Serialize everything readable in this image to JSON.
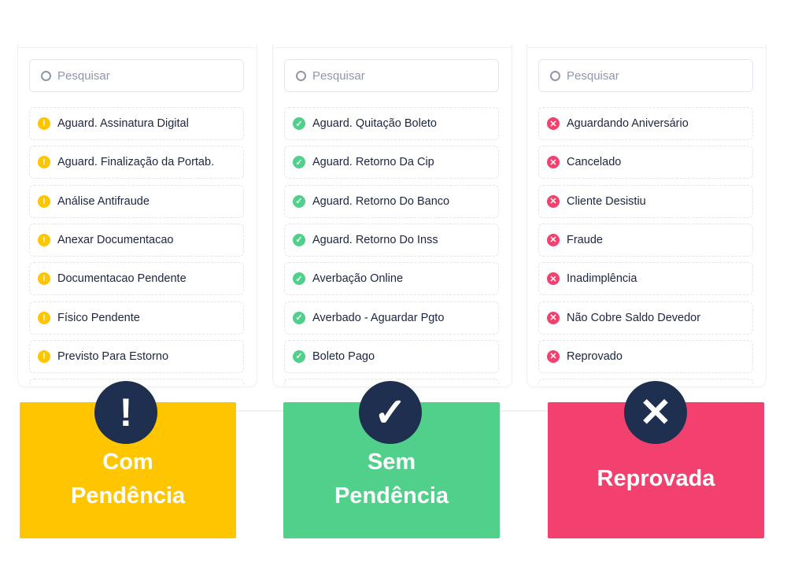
{
  "search_placeholder": "Pesquisar",
  "colors": {
    "pending": "#ffc600",
    "ok": "#50d08a",
    "rejected": "#f2416e",
    "circle": "#1e2f4f"
  },
  "columns": [
    {
      "icon": "exclamation-icon",
      "items": [
        "Aguard. Assinatura Digital",
        "Aguard. Finalização da Portab.",
        "Análise Antifraude",
        "Anexar Documentacao",
        "Documentacao Pendente",
        "Físico Pendente",
        "Previsto Para Estorno"
      ],
      "card": {
        "line1": "Com",
        "line2": "Pendência"
      }
    },
    {
      "icon": "check-icon",
      "items": [
        "Aguard. Quitação Boleto",
        "Aguard. Retorno Da Cip",
        "Aguard. Retorno Do Banco",
        "Aguard. Retorno Do Inss",
        "Averbação Online",
        "Averbado - Aguardar Pgto",
        "Boleto Pago"
      ],
      "card": {
        "line1": "Sem",
        "line2": "Pendência"
      }
    },
    {
      "icon": "x-icon",
      "items": [
        "Aguardando Aniversário",
        "Cancelado",
        "Cliente Desistiu",
        "Fraude",
        "Inadimplência",
        "Não Cobre Saldo Devedor",
        "Reprovado"
      ],
      "card": {
        "line1": "Reprovada",
        "line2": ""
      }
    }
  ]
}
